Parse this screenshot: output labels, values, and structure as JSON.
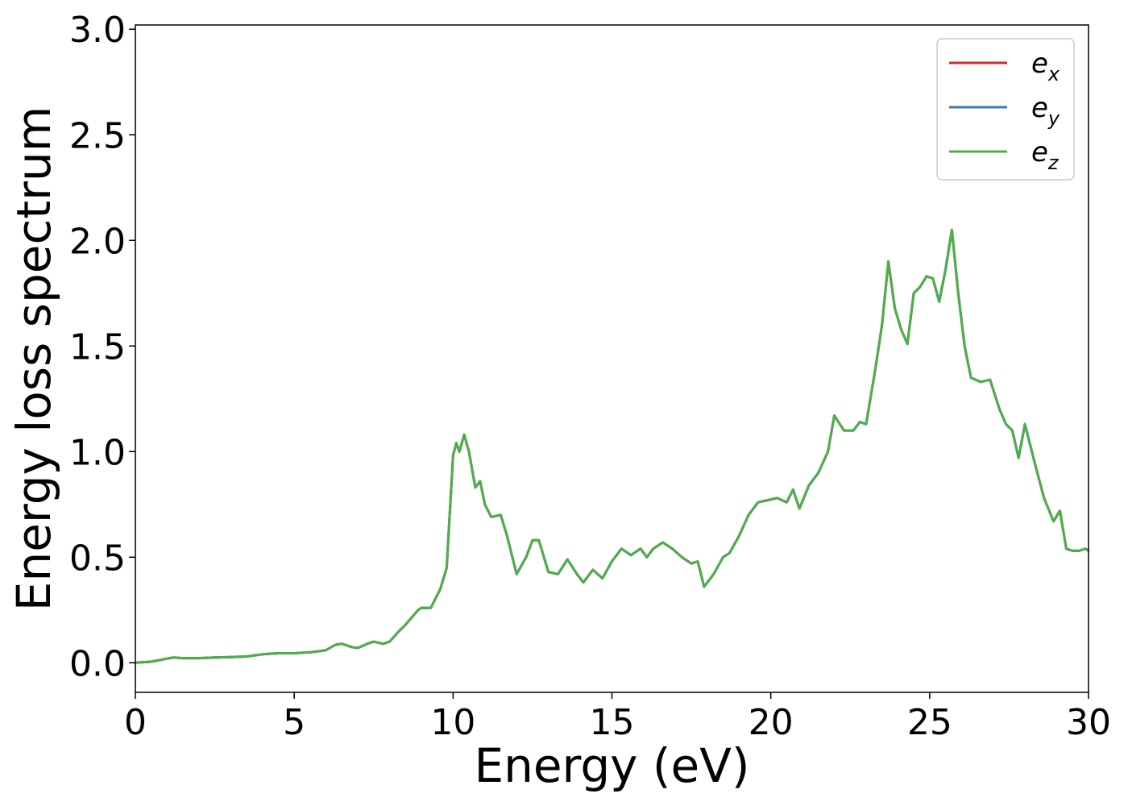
{
  "chart_data": {
    "type": "line",
    "title": "",
    "xlabel": "Energy (eV)",
    "ylabel": "Energy loss spectrum",
    "xlim": [
      0,
      30
    ],
    "ylim": [
      -0.14,
      3.02
    ],
    "xticks": [
      "0",
      "5",
      "10",
      "15",
      "20",
      "25",
      "30"
    ],
    "yticks": [
      "0.0",
      "0.5",
      "1.0",
      "1.5",
      "2.0",
      "2.5",
      "3.0"
    ],
    "grid": false,
    "legend_position": "top-right",
    "x": [
      0,
      0.5,
      1.0,
      1.2,
      1.5,
      2.0,
      2.5,
      3.0,
      3.5,
      4.0,
      4.5,
      5.0,
      5.5,
      5.8,
      6.0,
      6.3,
      6.5,
      6.8,
      7.0,
      7.3,
      7.5,
      7.8,
      8.0,
      8.3,
      8.5,
      8.9,
      9.0,
      9.3,
      9.6,
      9.8,
      10.0,
      10.1,
      10.2,
      10.35,
      10.5,
      10.7,
      10.85,
      11.0,
      11.2,
      11.5,
      11.7,
      12.0,
      12.3,
      12.5,
      12.7,
      13.0,
      13.3,
      13.6,
      13.9,
      14.1,
      14.4,
      14.7,
      15.0,
      15.3,
      15.6,
      15.9,
      16.1,
      16.3,
      16.6,
      16.9,
      17.2,
      17.5,
      17.7,
      17.9,
      18.2,
      18.5,
      18.7,
      19.0,
      19.3,
      19.6,
      19.9,
      20.2,
      20.5,
      20.7,
      20.9,
      21.2,
      21.5,
      21.8,
      22.0,
      22.3,
      22.6,
      22.8,
      23.0,
      23.3,
      23.5,
      23.7,
      23.9,
      24.1,
      24.3,
      24.5,
      24.7,
      24.9,
      25.1,
      25.3,
      25.5,
      25.7,
      25.9,
      26.1,
      26.3,
      26.6,
      26.9,
      27.2,
      27.4,
      27.6,
      27.8,
      28.0,
      28.3,
      28.6,
      28.9,
      29.1,
      29.3,
      29.5,
      29.7,
      29.9,
      30.0
    ],
    "series": [
      {
        "name": "e_x",
        "color": "#d62728",
        "values": [
          0.0,
          0.005,
          0.02,
          0.025,
          0.022,
          0.022,
          0.025,
          0.027,
          0.03,
          0.04,
          0.045,
          0.045,
          0.05,
          0.055,
          0.06,
          0.085,
          0.09,
          0.075,
          0.07,
          0.09,
          0.1,
          0.09,
          0.1,
          0.15,
          0.18,
          0.25,
          0.26,
          0.26,
          0.35,
          0.45,
          0.98,
          1.04,
          1.0,
          1.08,
          1.0,
          0.83,
          0.86,
          0.75,
          0.69,
          0.7,
          0.6,
          0.42,
          0.5,
          0.58,
          0.58,
          0.43,
          0.42,
          0.49,
          0.42,
          0.38,
          0.44,
          0.4,
          0.48,
          0.54,
          0.51,
          0.54,
          0.5,
          0.54,
          0.57,
          0.54,
          0.5,
          0.47,
          0.48,
          0.36,
          0.42,
          0.5,
          0.52,
          0.6,
          0.7,
          0.76,
          0.77,
          0.78,
          0.76,
          0.82,
          0.73,
          0.84,
          0.9,
          1.0,
          1.17,
          1.1,
          1.1,
          1.14,
          1.13,
          1.4,
          1.6,
          1.9,
          1.68,
          1.58,
          1.51,
          1.75,
          1.78,
          1.83,
          1.82,
          1.71,
          1.86,
          2.05,
          1.75,
          1.5,
          1.35,
          1.33,
          1.34,
          1.2,
          1.13,
          1.1,
          0.97,
          1.13,
          0.95,
          0.78,
          0.67,
          0.72,
          0.54,
          0.53,
          0.53,
          0.54,
          0.53
        ]
      },
      {
        "name": "e_y",
        "color": "#377eb8",
        "values": [
          0.0,
          0.005,
          0.02,
          0.025,
          0.022,
          0.022,
          0.025,
          0.027,
          0.03,
          0.04,
          0.045,
          0.045,
          0.05,
          0.055,
          0.06,
          0.085,
          0.09,
          0.075,
          0.07,
          0.09,
          0.1,
          0.09,
          0.1,
          0.15,
          0.18,
          0.25,
          0.26,
          0.26,
          0.35,
          0.45,
          0.98,
          1.04,
          1.0,
          1.08,
          1.0,
          0.83,
          0.86,
          0.75,
          0.69,
          0.7,
          0.6,
          0.42,
          0.5,
          0.58,
          0.58,
          0.43,
          0.42,
          0.49,
          0.42,
          0.38,
          0.44,
          0.4,
          0.48,
          0.54,
          0.51,
          0.54,
          0.5,
          0.54,
          0.57,
          0.54,
          0.5,
          0.47,
          0.48,
          0.36,
          0.42,
          0.5,
          0.52,
          0.6,
          0.7,
          0.76,
          0.77,
          0.78,
          0.76,
          0.82,
          0.73,
          0.84,
          0.9,
          1.0,
          1.17,
          1.1,
          1.1,
          1.14,
          1.13,
          1.4,
          1.6,
          1.9,
          1.68,
          1.58,
          1.51,
          1.75,
          1.78,
          1.83,
          1.82,
          1.71,
          1.86,
          2.05,
          1.75,
          1.5,
          1.35,
          1.33,
          1.34,
          1.2,
          1.13,
          1.1,
          0.97,
          1.13,
          0.95,
          0.78,
          0.67,
          0.72,
          0.54,
          0.53,
          0.53,
          0.54,
          0.53
        ]
      },
      {
        "name": "e_z",
        "color": "#4daf4a",
        "values": [
          0.0,
          0.005,
          0.02,
          0.025,
          0.022,
          0.022,
          0.025,
          0.027,
          0.03,
          0.04,
          0.045,
          0.045,
          0.05,
          0.055,
          0.06,
          0.085,
          0.09,
          0.075,
          0.07,
          0.09,
          0.1,
          0.09,
          0.1,
          0.15,
          0.18,
          0.25,
          0.26,
          0.26,
          0.35,
          0.45,
          0.98,
          1.04,
          1.0,
          1.08,
          1.0,
          0.83,
          0.86,
          0.75,
          0.69,
          0.7,
          0.6,
          0.42,
          0.5,
          0.58,
          0.58,
          0.43,
          0.42,
          0.49,
          0.42,
          0.38,
          0.44,
          0.4,
          0.48,
          0.54,
          0.51,
          0.54,
          0.5,
          0.54,
          0.57,
          0.54,
          0.5,
          0.47,
          0.48,
          0.36,
          0.42,
          0.5,
          0.52,
          0.6,
          0.7,
          0.76,
          0.77,
          0.78,
          0.76,
          0.82,
          0.73,
          0.84,
          0.9,
          1.0,
          1.17,
          1.1,
          1.1,
          1.14,
          1.13,
          1.4,
          1.6,
          1.9,
          1.68,
          1.58,
          1.51,
          1.75,
          1.78,
          1.83,
          1.82,
          1.71,
          1.86,
          2.05,
          1.75,
          1.5,
          1.35,
          1.33,
          1.34,
          1.2,
          1.13,
          1.1,
          0.97,
          1.13,
          0.95,
          0.78,
          0.67,
          0.72,
          0.54,
          0.53,
          0.53,
          0.54,
          0.53
        ]
      }
    ],
    "legend": [
      {
        "base": "e",
        "sub": "x",
        "color": "#d62728"
      },
      {
        "base": "e",
        "sub": "y",
        "color": "#377eb8"
      },
      {
        "base": "e",
        "sub": "z",
        "color": "#4daf4a"
      }
    ]
  }
}
